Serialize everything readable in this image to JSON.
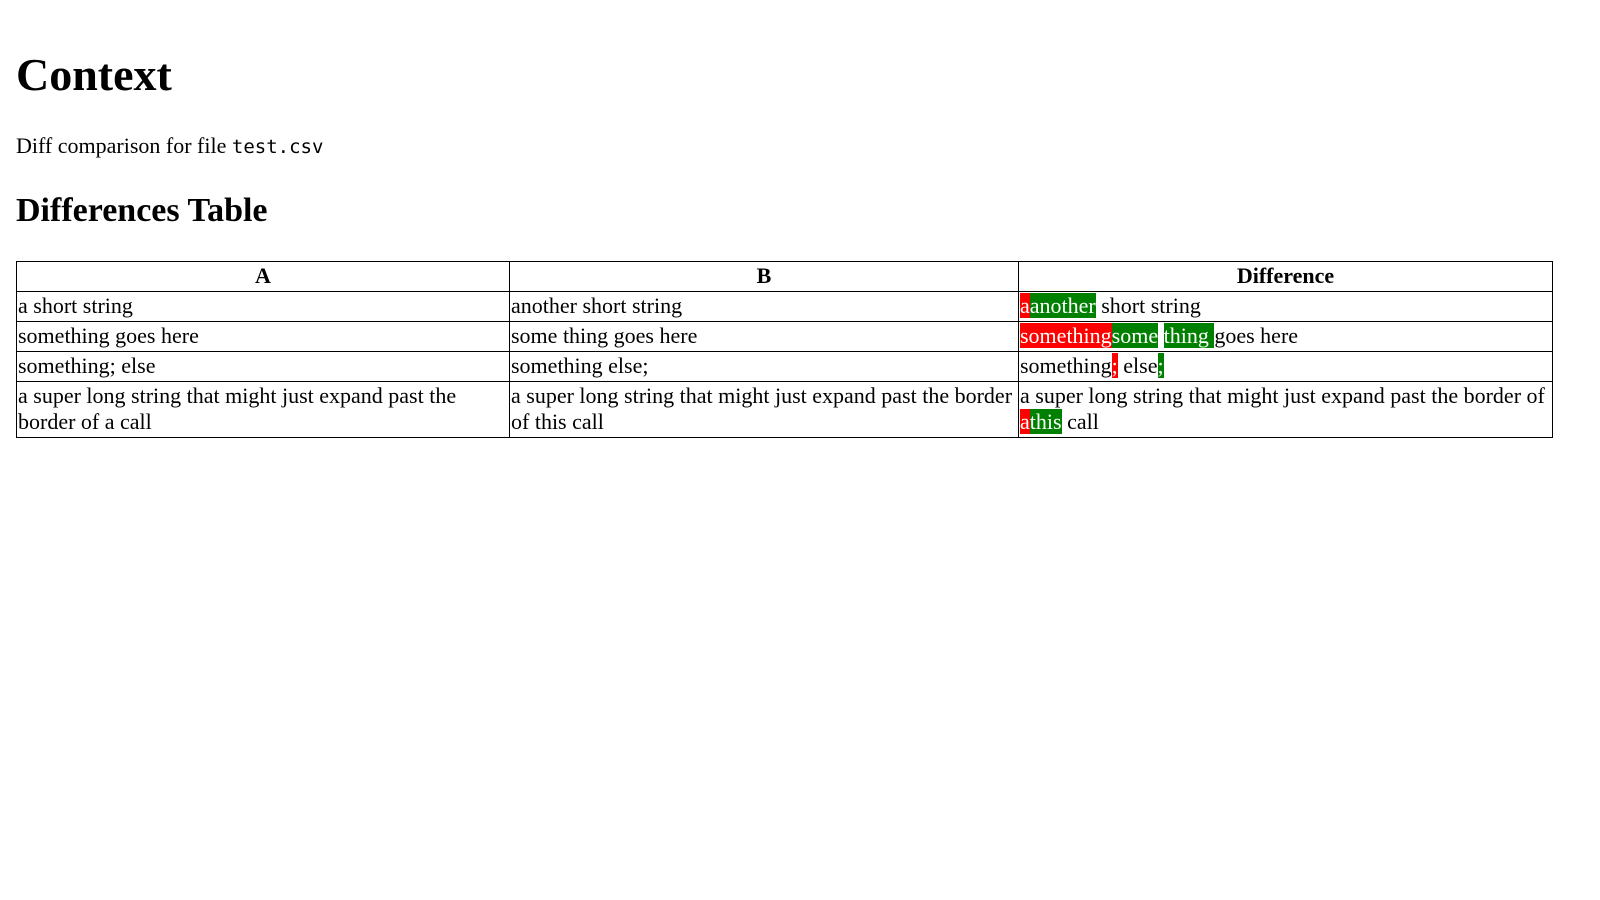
{
  "page": {
    "title": "Context",
    "subtitle_prefix": "Diff comparison for file ",
    "filename": "test.csv",
    "section_title": "Differences Table"
  },
  "table": {
    "headers": [
      "A",
      "B",
      "Difference"
    ],
    "rows": [
      {
        "a": "a short string",
        "b": "another short string",
        "diff": [
          {
            "t": "del",
            "text": "a"
          },
          {
            "t": "ins",
            "text": "another"
          },
          {
            "t": "eq",
            "text": " short string"
          }
        ]
      },
      {
        "a": "something goes here",
        "b": "some thing goes here",
        "diff": [
          {
            "t": "del",
            "text": "something"
          },
          {
            "t": "ins",
            "text": "some"
          },
          {
            "t": "eq",
            "text": " "
          },
          {
            "t": "ins",
            "text": "thing "
          },
          {
            "t": "eq",
            "text": "goes here"
          }
        ]
      },
      {
        "a": "something; else",
        "b": "something else;",
        "diff": [
          {
            "t": "eq",
            "text": "something"
          },
          {
            "t": "del",
            "text": ";"
          },
          {
            "t": "eq",
            "text": " else"
          },
          {
            "t": "ins",
            "text": ";"
          }
        ]
      },
      {
        "a": "a super long string that might just expand past the border of a call",
        "b": "a super long string that might just expand past the border of this call",
        "diff": [
          {
            "t": "eq",
            "text": "a super long string that might just expand past the border of "
          },
          {
            "t": "del",
            "text": "a"
          },
          {
            "t": "ins",
            "text": "this"
          },
          {
            "t": "eq",
            "text": " call"
          }
        ]
      }
    ]
  },
  "colors": {
    "deleted": "#ff0000",
    "inserted": "#008000"
  }
}
